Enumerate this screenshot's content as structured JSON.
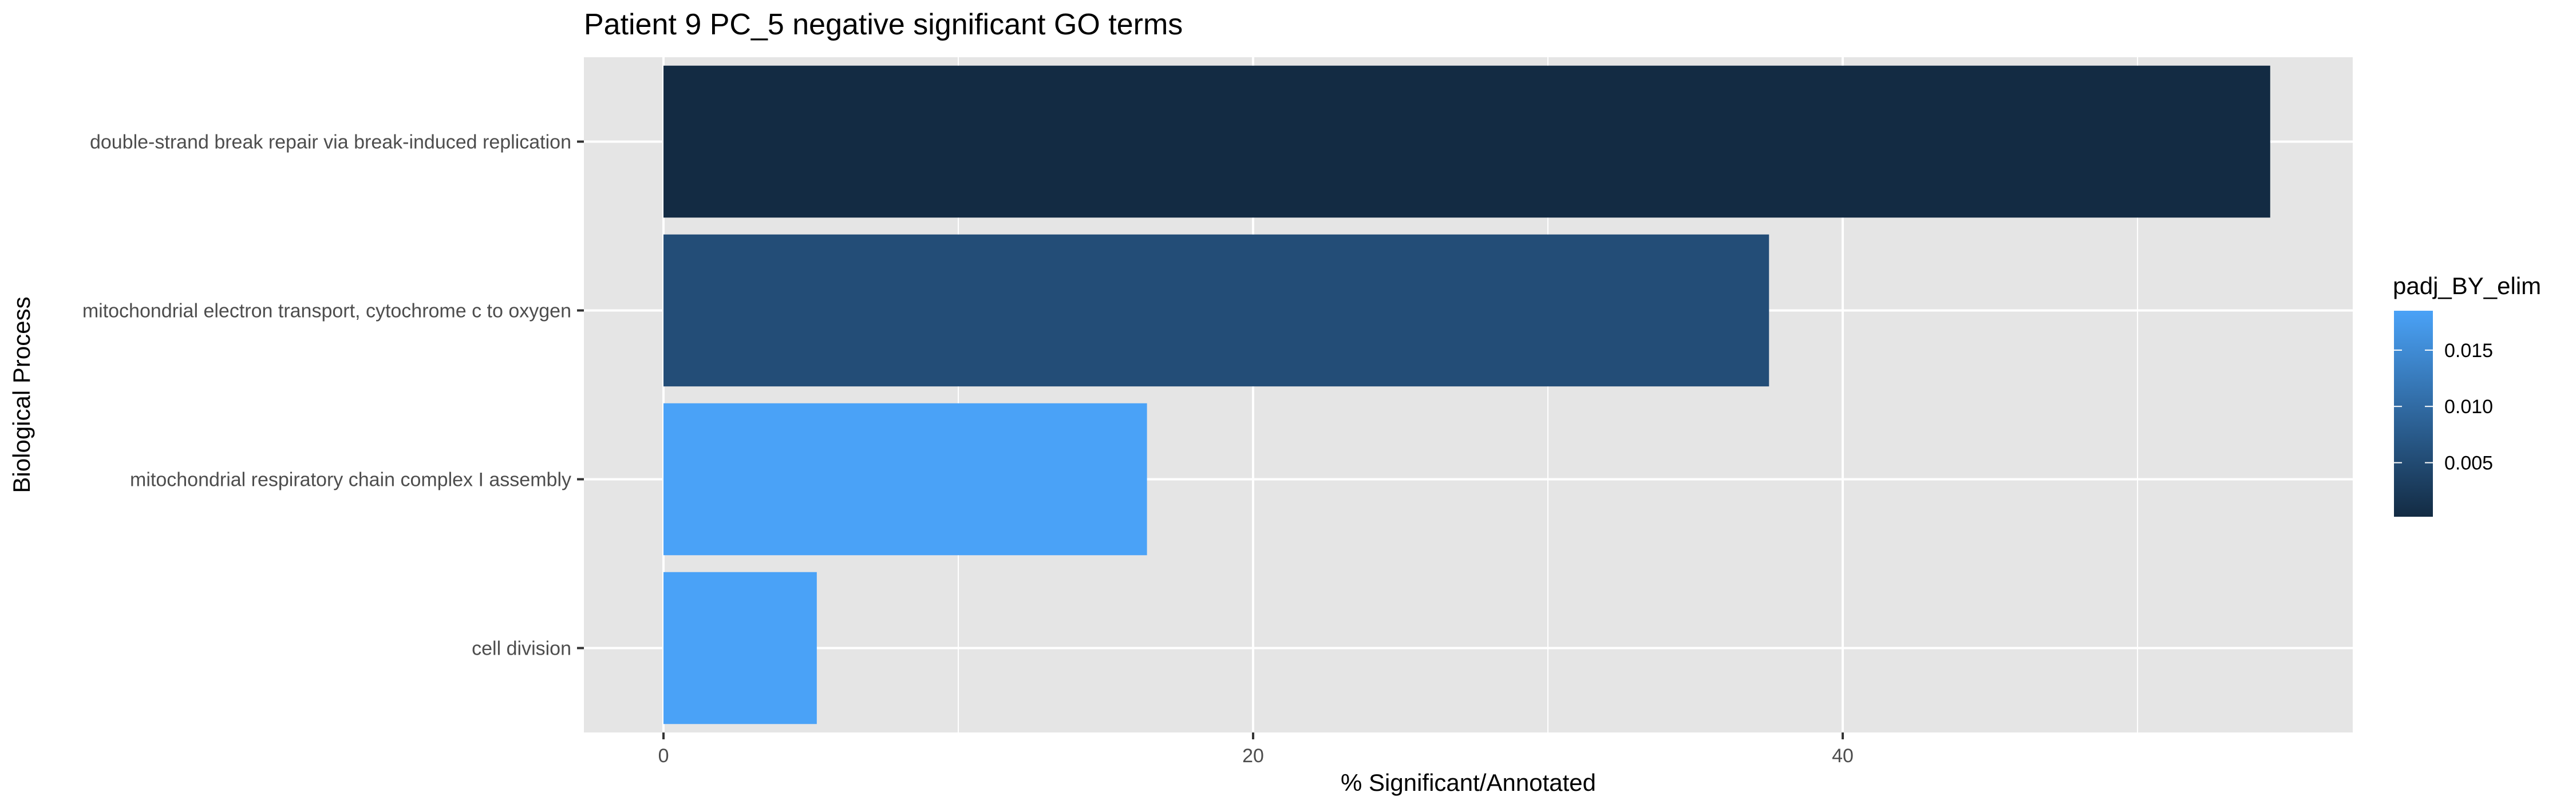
{
  "chart_data": {
    "type": "bar",
    "orientation": "horizontal",
    "title": "Patient 9 PC_5 negative significant GO terms",
    "xlabel": "% Significant/Annotated",
    "ylabel": "Biological Process",
    "categories": [
      "double-strand break repair via break-induced replication",
      "mitochondrial electron transport, cytochrome c to oxygen",
      "mitochondrial respiratory chain complex I assembly",
      "cell division"
    ],
    "values": [
      54.5,
      37.5,
      16.4,
      5.2
    ],
    "padj": [
      0.0002,
      0.0055,
      0.0185,
      0.0185
    ],
    "xlim": [
      -2.7,
      57.3
    ],
    "xticks": [
      0,
      20,
      40
    ],
    "grid": true,
    "legend": {
      "title": "padj_BY_elim",
      "position": "right",
      "type": "colorbar",
      "range": [
        0.0002,
        0.0185
      ],
      "ticks": [
        0.005,
        0.01,
        0.015
      ],
      "tick_labels": [
        "0.005",
        "0.010",
        "0.015"
      ],
      "color_low": "#132b43",
      "color_high": "#4aa2f7"
    },
    "colors": {
      "panel_bg": "#e5e5e5",
      "grid": "#ffffff"
    }
  }
}
